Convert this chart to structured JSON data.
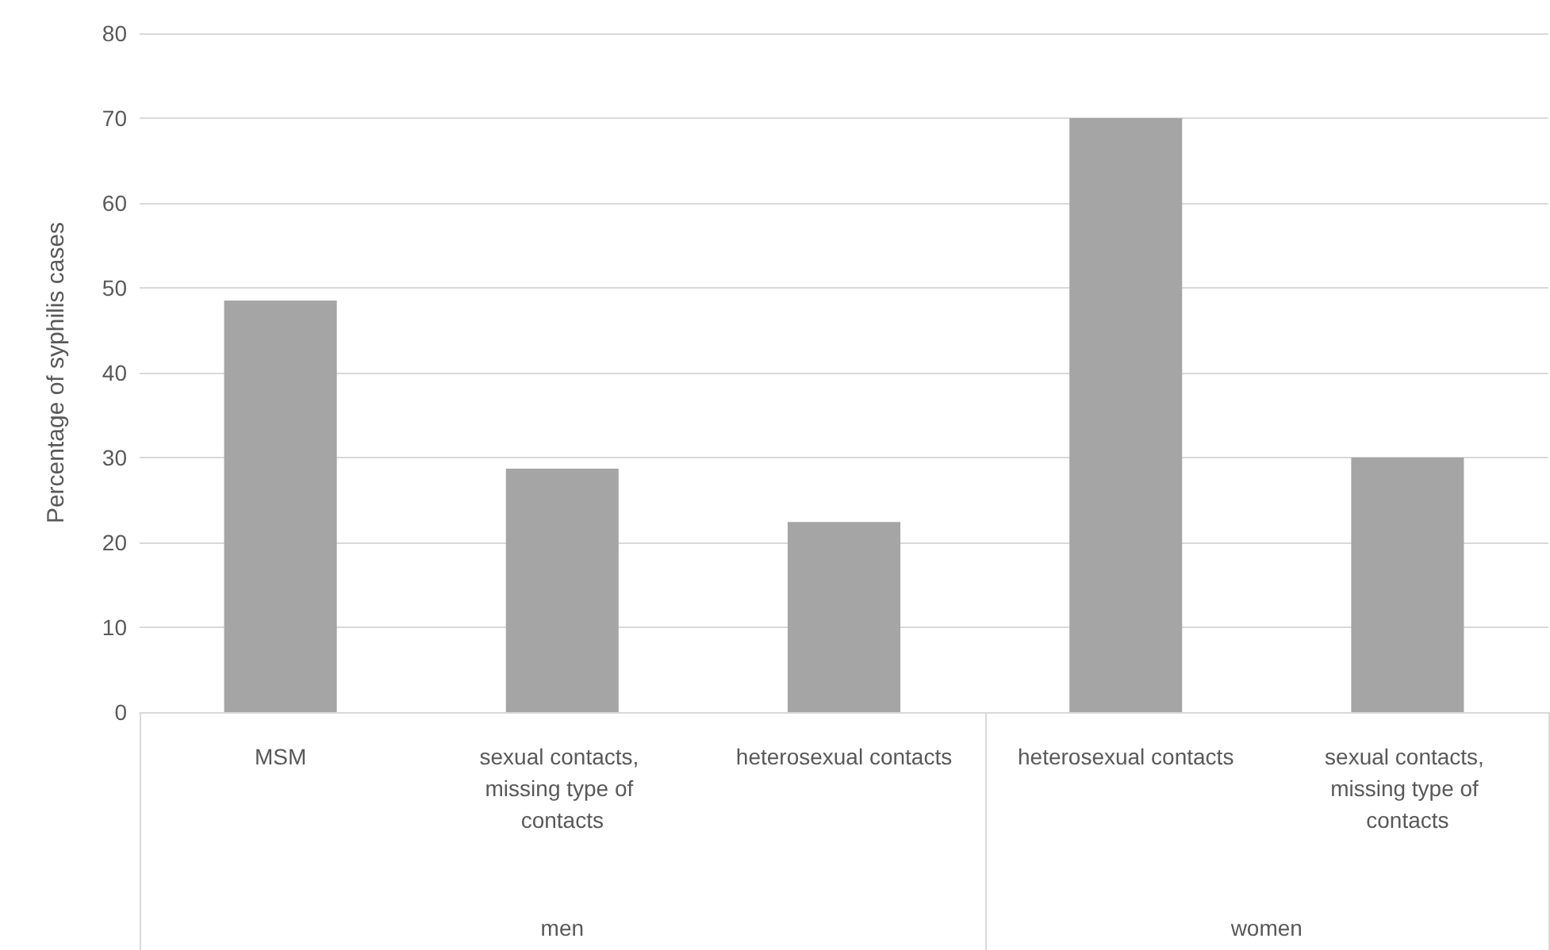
{
  "chart_data": {
    "type": "bar",
    "ylabel": "Percentage of syphilis cases",
    "categories": [
      "MSM",
      "sexual contacts, missing type of contacts",
      "heterosexual contacts",
      "heterosexual contacts",
      "sexual contacts, missing type of contacts"
    ],
    "values": [
      48.5,
      28.7,
      22.4,
      70,
      30
    ],
    "color": "#a5a5a5",
    "ylim": [
      0,
      80
    ],
    "yticks": [
      0,
      10,
      20,
      30,
      40,
      50,
      60,
      70,
      80
    ],
    "grid": "y",
    "annotations": [
      "men",
      "women"
    ]
  }
}
